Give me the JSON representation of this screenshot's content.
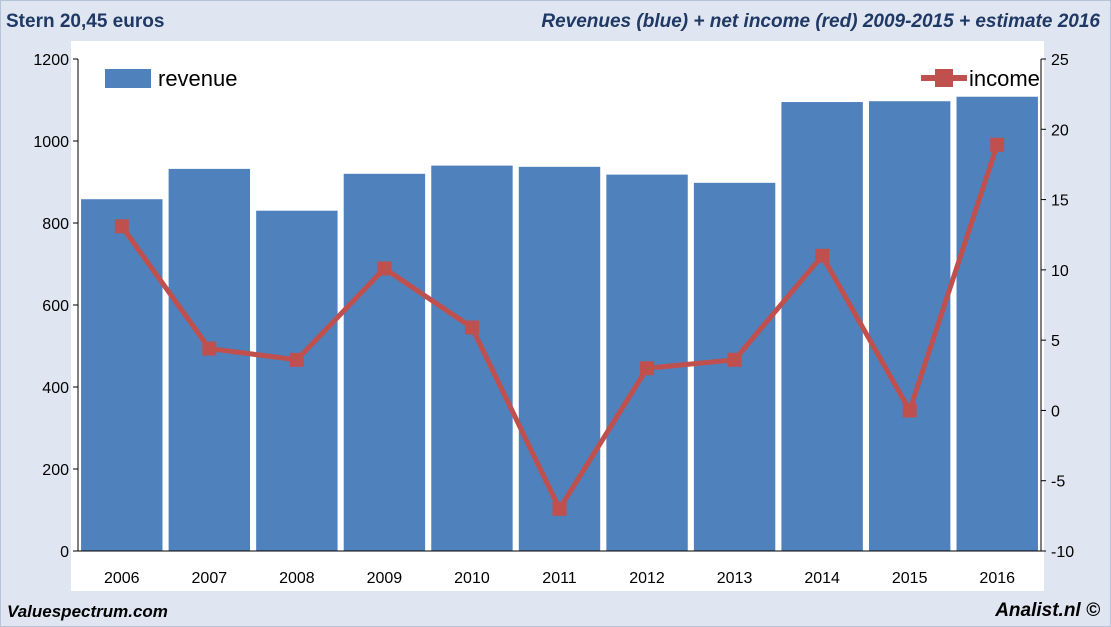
{
  "header": {
    "left_title": "Stern 20,45 euros",
    "right_title": "Revenues (blue) + net income (red) 2009-2015 + estimate 2016"
  },
  "footer": {
    "left": "Valuespectrum.com",
    "right": "Analist.nl ©"
  },
  "colors": {
    "bar": "#4f81bd",
    "line": "#c0504d"
  },
  "chart_data": {
    "type": "bar+line",
    "categories": [
      "2006",
      "2007",
      "2008",
      "2009",
      "2010",
      "2011",
      "2012",
      "2013",
      "2014",
      "2015",
      "2016"
    ],
    "series": [
      {
        "name": "revenue",
        "axis": "left",
        "type": "bar",
        "values": [
          858,
          932,
          830,
          920,
          940,
          937,
          918,
          898,
          1095,
          1097,
          1108
        ]
      },
      {
        "name": "income",
        "axis": "right",
        "type": "line",
        "values": [
          13.1,
          4.4,
          3.6,
          10.1,
          5.9,
          -7.0,
          3.0,
          3.6,
          11.0,
          0.0,
          18.9
        ]
      }
    ],
    "y_left": {
      "min": 0,
      "max": 1200,
      "ticks": [
        "0",
        "200",
        "400",
        "600",
        "800",
        "1000",
        "1200"
      ]
    },
    "y_right": {
      "min": -10,
      "max": 25,
      "ticks": [
        "-10",
        "-5",
        "0",
        "5",
        "10",
        "15",
        "20",
        "25"
      ]
    },
    "legend": {
      "revenue_label": "revenue",
      "revenue_position": "top-left",
      "income_label": "income",
      "income_position": "top-right"
    },
    "grid": false
  }
}
